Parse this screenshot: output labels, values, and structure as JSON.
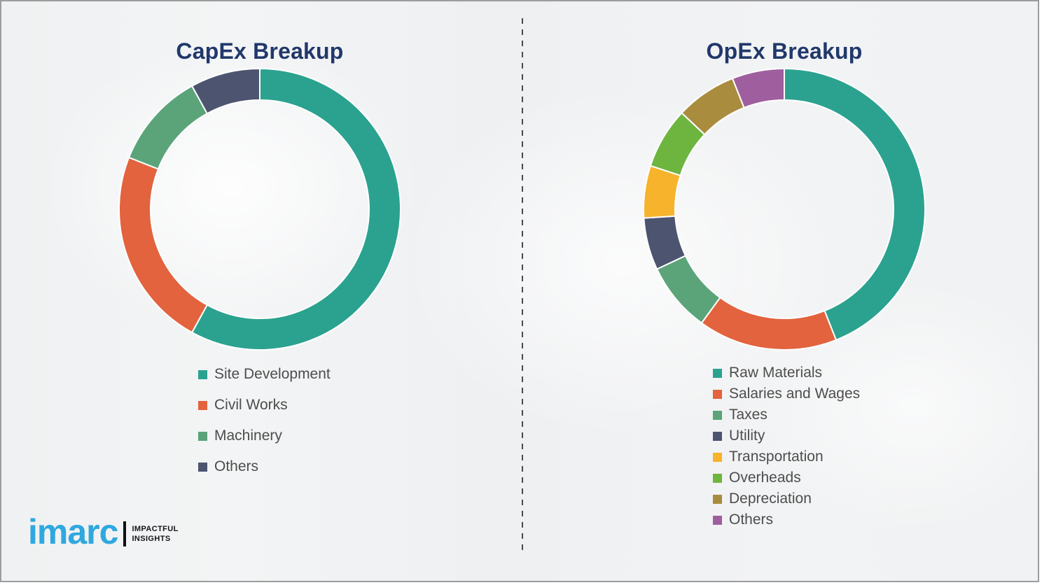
{
  "style": {
    "title_color": "#21386B",
    "legend_text_color": "#4d4d4d",
    "background_color": "#f1f2f3",
    "border_color": "#9c9c9c",
    "divider_color": "#4a4a4a"
  },
  "chart_data": [
    {
      "type": "pie",
      "variant": "donut",
      "title": "CapEx Breakup",
      "start_angle_deg": 0,
      "direction": "clockwise",
      "legend_position": "below-left",
      "segments": [
        {
          "label": "Site Development",
          "value": 58,
          "color": "#2BA290"
        },
        {
          "label": "Civil Works",
          "value": 23,
          "color": "#E2633E"
        },
        {
          "label": "Machinery",
          "value": 11,
          "color": "#5BA47A"
        },
        {
          "label": "Others",
          "value": 8,
          "color": "#4D5470"
        }
      ]
    },
    {
      "type": "pie",
      "variant": "donut",
      "title": "OpEx Breakup",
      "start_angle_deg": 0,
      "direction": "clockwise",
      "legend_position": "below-left",
      "segments": [
        {
          "label": "Raw Materials",
          "value": 44,
          "color": "#2BA290"
        },
        {
          "label": "Salaries and Wages",
          "value": 16,
          "color": "#E2633E"
        },
        {
          "label": "Taxes",
          "value": 8,
          "color": "#5BA47A"
        },
        {
          "label": "Utility",
          "value": 6,
          "color": "#4D5470"
        },
        {
          "label": "Transportation",
          "value": 6,
          "color": "#F6B32B"
        },
        {
          "label": "Overheads",
          "value": 7,
          "color": "#6DB53F"
        },
        {
          "label": "Depreciation",
          "value": 7,
          "color": "#A98C3D"
        },
        {
          "label": "Others",
          "value": 6,
          "color": "#9F5F9E"
        }
      ]
    }
  ],
  "logo": {
    "brand": "imarc",
    "brand_color": "#2FA8DF",
    "tagline_line1": "IMPACTFUL",
    "tagline_line2": "INSIGHTS"
  }
}
